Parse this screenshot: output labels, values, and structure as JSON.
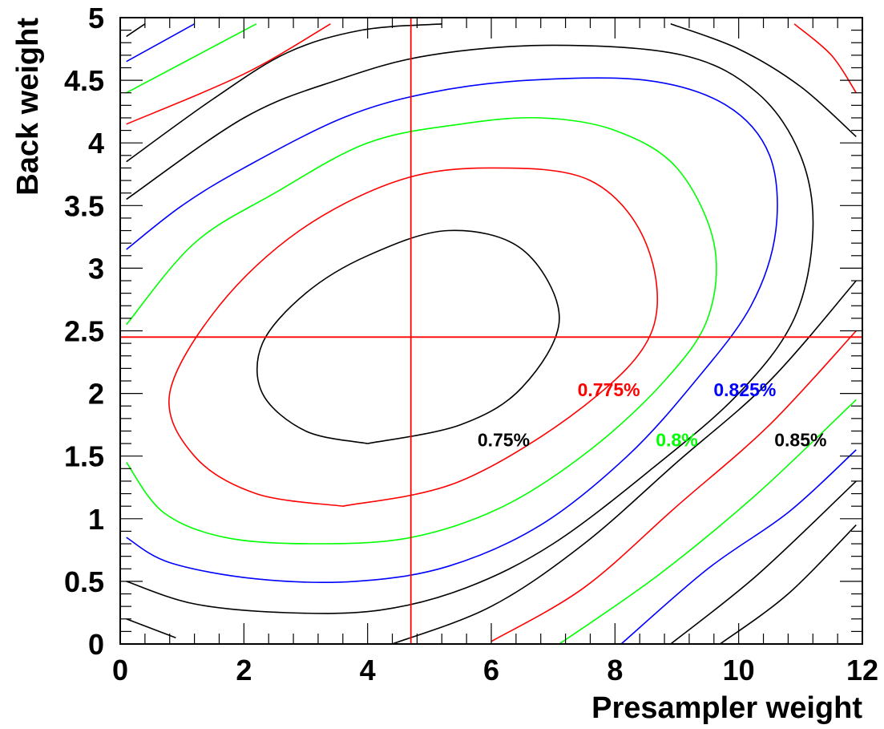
{
  "chart_data": {
    "type": "contour",
    "title": "",
    "xlabel": "Presampler weight",
    "ylabel": "Back weight",
    "xlim": [
      0,
      12
    ],
    "ylim": [
      0,
      5
    ],
    "x_ticks": [
      "0",
      "2",
      "4",
      "6",
      "8",
      "10",
      "12"
    ],
    "y_ticks": [
      "0",
      "0.5",
      "1",
      "1.5",
      "2",
      "2.5",
      "3",
      "3.5",
      "4",
      "4.5",
      "5"
    ],
    "grid": false,
    "minimum_marker": {
      "x": 4.7,
      "y": 2.45,
      "color": "#ff0000"
    },
    "series": [
      {
        "color": "#000000",
        "label": "0.75%",
        "label_x": 6.2,
        "label_y": 1.63,
        "paths": [
          [
            [
              4.0,
              1.6
            ],
            [
              5.5,
              1.75
            ],
            [
              6.5,
              2.05
            ],
            [
              7.1,
              2.6
            ],
            [
              6.5,
              3.15
            ],
            [
              5.3,
              3.3
            ],
            [
              4.0,
              3.1
            ],
            [
              3.0,
              2.8
            ],
            [
              2.3,
              2.4
            ],
            [
              2.3,
              2.0
            ],
            [
              3.0,
              1.7
            ],
            [
              4.0,
              1.6
            ]
          ]
        ]
      },
      {
        "color": "#ff0000",
        "label": "0.775%",
        "label_x": 7.9,
        "label_y": 2.03,
        "paths": [
          [
            [
              3.6,
              1.1
            ],
            [
              5.5,
              1.3
            ],
            [
              7.5,
              1.9
            ],
            [
              8.6,
              2.5
            ],
            [
              8.5,
              3.2
            ],
            [
              7.6,
              3.7
            ],
            [
              6.0,
              3.8
            ],
            [
              4.5,
              3.7
            ],
            [
              2.9,
              3.3
            ],
            [
              1.6,
              2.7
            ],
            [
              0.8,
              2.0
            ],
            [
              1.2,
              1.5
            ],
            [
              2.2,
              1.2
            ],
            [
              3.6,
              1.1
            ]
          ]
        ]
      },
      {
        "color": "#00ff00",
        "label": "0.8%",
        "label_x": 9.0,
        "label_y": 1.63,
        "paths": [
          [
            [
              0.1,
              1.45
            ],
            [
              0.7,
              1.05
            ],
            [
              1.7,
              0.85
            ],
            [
              3.1,
              0.8
            ],
            [
              4.7,
              0.85
            ],
            [
              6.2,
              1.1
            ],
            [
              7.6,
              1.55
            ],
            [
              8.8,
              2.1
            ],
            [
              9.5,
              2.6
            ],
            [
              9.6,
              3.2
            ],
            [
              9.0,
              3.8
            ],
            [
              8.0,
              4.1
            ],
            [
              6.8,
              4.2
            ],
            [
              5.5,
              4.15
            ],
            [
              4.0,
              4.0
            ],
            [
              2.5,
              3.6
            ],
            [
              1.2,
              3.2
            ],
            [
              0.1,
              2.55
            ]
          ]
        ]
      },
      {
        "color": "#0000ff",
        "label": "0.825%",
        "label_x": 10.1,
        "label_y": 2.03,
        "paths": [
          [
            [
              0.1,
              0.85
            ],
            [
              0.8,
              0.65
            ],
            [
              2.2,
              0.52
            ],
            [
              3.8,
              0.5
            ],
            [
              5.3,
              0.62
            ],
            [
              6.8,
              0.95
            ],
            [
              8.2,
              1.5
            ],
            [
              9.3,
              2.1
            ],
            [
              10.2,
              2.7
            ],
            [
              10.6,
              3.3
            ],
            [
              10.5,
              3.9
            ],
            [
              9.8,
              4.3
            ],
            [
              8.5,
              4.5
            ],
            [
              6.6,
              4.5
            ],
            [
              5.0,
              4.4
            ],
            [
              3.6,
              4.2
            ],
            [
              2.0,
              3.8
            ],
            [
              1.0,
              3.5
            ],
            [
              0.1,
              3.15
            ]
          ]
        ]
      },
      {
        "color": "#000000",
        "label": "0.85%",
        "label_x": 11.0,
        "label_y": 1.63,
        "paths": [
          [
            [
              0.1,
              0.5
            ],
            [
              1.2,
              0.32
            ],
            [
              2.7,
              0.25
            ],
            [
              4.2,
              0.27
            ],
            [
              5.6,
              0.45
            ],
            [
              7.0,
              0.8
            ],
            [
              8.6,
              1.4
            ],
            [
              10.0,
              2.0
            ],
            [
              10.9,
              2.6
            ],
            [
              11.2,
              3.3
            ],
            [
              11.0,
              3.9
            ],
            [
              10.3,
              4.4
            ],
            [
              9.1,
              4.7
            ],
            [
              7.0,
              4.78
            ],
            [
              5.0,
              4.7
            ],
            [
              3.5,
              4.5
            ],
            [
              2.0,
              4.2
            ],
            [
              0.1,
              3.55
            ]
          ],
          [
            [
              0.1,
              3.85
            ],
            [
              1.5,
              4.35
            ],
            [
              2.7,
              4.72
            ],
            [
              3.9,
              4.9
            ],
            [
              5.2,
              4.95
            ]
          ],
          [
            [
              8.9,
              4.95
            ],
            [
              10.0,
              4.75
            ],
            [
              11.0,
              4.45
            ],
            [
              11.9,
              4.05
            ]
          ],
          [
            [
              0.1,
              0.2
            ],
            [
              0.9,
              0.05
            ]
          ],
          [
            [
              4.4,
              0.0
            ],
            [
              6.0,
              0.3
            ],
            [
              7.5,
              0.8
            ],
            [
              9.0,
              1.45
            ],
            [
              10.5,
              2.1
            ],
            [
              11.9,
              2.9
            ]
          ],
          [
            [
              8.9,
              0.0
            ],
            [
              10.3,
              0.55
            ],
            [
              11.9,
              1.3
            ]
          ],
          [
            [
              9.7,
              0.0
            ],
            [
              10.8,
              0.4
            ],
            [
              11.9,
              0.95
            ]
          ],
          [
            [
              0.1,
              4.85
            ],
            [
              0.4,
              4.95
            ]
          ]
        ]
      },
      {
        "color": "#0000ff",
        "label": "",
        "paths": [
          [
            [
              0.1,
              4.65
            ],
            [
              1.2,
              4.95
            ]
          ]
        ]
      },
      {
        "color": "#00ff00",
        "label": "",
        "paths": [
          [
            [
              0.1,
              4.4
            ],
            [
              2.2,
              4.95
            ]
          ]
        ]
      },
      {
        "color": "#ff0000",
        "label": "",
        "paths": [
          [
            [
              0.1,
              4.15
            ],
            [
              2.0,
              4.55
            ],
            [
              3.4,
              4.95
            ]
          ],
          [
            [
              10.9,
              4.95
            ],
            [
              11.5,
              4.7
            ],
            [
              11.9,
              4.4
            ]
          ],
          [
            [
              6.0,
              0.02
            ],
            [
              7.5,
              0.45
            ],
            [
              9.0,
              1.1
            ],
            [
              10.5,
              1.75
            ],
            [
              11.9,
              2.5
            ]
          ]
        ]
      },
      {
        "color": "#00ff00",
        "label": "",
        "paths": [
          [
            [
              7.1,
              0.0
            ],
            [
              8.7,
              0.55
            ],
            [
              10.3,
              1.2
            ],
            [
              11.9,
              1.95
            ]
          ]
        ]
      },
      {
        "color": "#0000ff",
        "label": "",
        "paths": [
          [
            [
              8.1,
              0.0
            ],
            [
              9.5,
              0.6
            ],
            [
              10.8,
              1.05
            ],
            [
              11.9,
              1.55
            ]
          ]
        ]
      }
    ]
  }
}
